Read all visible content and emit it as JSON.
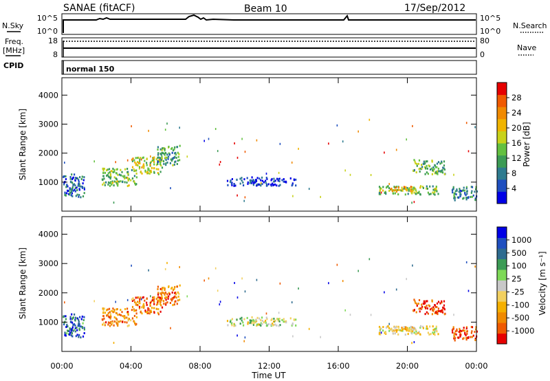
{
  "header": {
    "station": "SANAE (fitACF)",
    "beam": "Beam 10",
    "date": "17/Sep/2012"
  },
  "strips": {
    "nsky": {
      "label": "N.Sky",
      "ticks": [
        "10^5",
        "10^0"
      ]
    },
    "nsearch": {
      "label": "N.Search",
      "ticks": [
        "10^5",
        "10^0"
      ]
    },
    "freq": {
      "label_line1": "Freq.",
      "label_line2": "[MHz]",
      "ticks": [
        "18",
        "8"
      ]
    },
    "nave": {
      "label": "Nave",
      "ticks": [
        "80",
        "0"
      ]
    },
    "cpid": {
      "label": "CPID",
      "value": "normal 150"
    }
  },
  "colors": {
    "power_scale": [
      "#0000e6",
      "#1f4fbf",
      "#2e7b8f",
      "#3c9b55",
      "#63c040",
      "#c8d21a",
      "#f0b400",
      "#f08a00",
      "#f05a00",
      "#e60000"
    ],
    "velocity_scale": [
      "#e60000",
      "#f05a00",
      "#f08a00",
      "#f5b000",
      "#f2d060",
      "#c8c8c8",
      "#7ed957",
      "#3c9b55",
      "#2e6b8f",
      "#1f4fbf",
      "#0000e6"
    ]
  },
  "chart_data": [
    {
      "type": "heatmap",
      "title": "",
      "ylabel": "Slant Range [km]",
      "xlabel": "",
      "x_ticks": [
        "00:00",
        "04:00",
        "08:00",
        "12:00",
        "16:00",
        "20:00",
        "00:00"
      ],
      "y_ticks": [
        "1000",
        "2000",
        "3000",
        "4000"
      ],
      "ylim": [
        0,
        4600
      ],
      "colorbar": {
        "label": "Power [dB]",
        "ticks": [
          "4",
          "8",
          "12",
          "16",
          "20",
          "24",
          "28"
        ],
        "range": [
          0,
          30
        ]
      },
      "regions": [
        {
          "t0": 0.0,
          "t1": 1.3,
          "r0": 500,
          "r1": 1300,
          "level": 0.2
        },
        {
          "t0": 2.3,
          "t1": 4.3,
          "r0": 900,
          "r1": 1500,
          "level": 0.45
        },
        {
          "t0": 4.0,
          "t1": 5.8,
          "r0": 1300,
          "r1": 1900,
          "level": 0.55
        },
        {
          "t0": 5.5,
          "t1": 6.8,
          "r0": 1600,
          "r1": 2300,
          "level": 0.35
        },
        {
          "t0": 9.5,
          "t1": 13.5,
          "r0": 900,
          "r1": 1200,
          "level": 0.1
        },
        {
          "t0": 18.3,
          "t1": 21.8,
          "r0": 600,
          "r1": 900,
          "level": 0.45
        },
        {
          "t0": 19.0,
          "t1": 20.3,
          "r0": 700,
          "r1": 900,
          "level": 0.7
        },
        {
          "t0": 20.3,
          "t1": 22.2,
          "r0": 1300,
          "r1": 1800,
          "level": 0.4
        },
        {
          "t0": 22.5,
          "t1": 24.0,
          "r0": 400,
          "r1": 900,
          "level": 0.25
        }
      ]
    },
    {
      "type": "heatmap",
      "title": "",
      "ylabel": "Slant Range [km]",
      "xlabel": "Time UT",
      "x_ticks": [
        "00:00",
        "04:00",
        "08:00",
        "12:00",
        "16:00",
        "20:00",
        "00:00"
      ],
      "y_ticks": [
        "1000",
        "2000",
        "3000",
        "4000"
      ],
      "ylim": [
        0,
        4600
      ],
      "colorbar": {
        "label": "Velocity [m s⁻¹]",
        "ticks": [
          "1000",
          "500",
          "100",
          "25",
          "-25",
          "-100",
          "-500",
          "-1000"
        ],
        "range": [
          -1000,
          1000
        ]
      },
      "regions": [
        {
          "t0": 0.0,
          "t1": 1.3,
          "r0": 500,
          "r1": 1300,
          "level": 0.8
        },
        {
          "t0": 2.3,
          "t1": 4.3,
          "r0": 900,
          "r1": 1500,
          "level": 0.25
        },
        {
          "t0": 4.0,
          "t1": 5.8,
          "r0": 1300,
          "r1": 1900,
          "level": 0.2
        },
        {
          "t0": 5.5,
          "t1": 6.8,
          "r0": 1600,
          "r1": 2300,
          "level": 0.2
        },
        {
          "t0": 9.5,
          "t1": 13.5,
          "r0": 900,
          "r1": 1200,
          "level": 0.5
        },
        {
          "t0": 18.3,
          "t1": 21.8,
          "r0": 600,
          "r1": 900,
          "level": 0.45
        },
        {
          "t0": 19.0,
          "t1": 20.3,
          "r0": 700,
          "r1": 900,
          "level": 0.35
        },
        {
          "t0": 20.3,
          "t1": 22.2,
          "r0": 1300,
          "r1": 1800,
          "level": 0.1
        },
        {
          "t0": 22.5,
          "t1": 24.0,
          "r0": 400,
          "r1": 900,
          "level": 0.1
        }
      ]
    }
  ]
}
